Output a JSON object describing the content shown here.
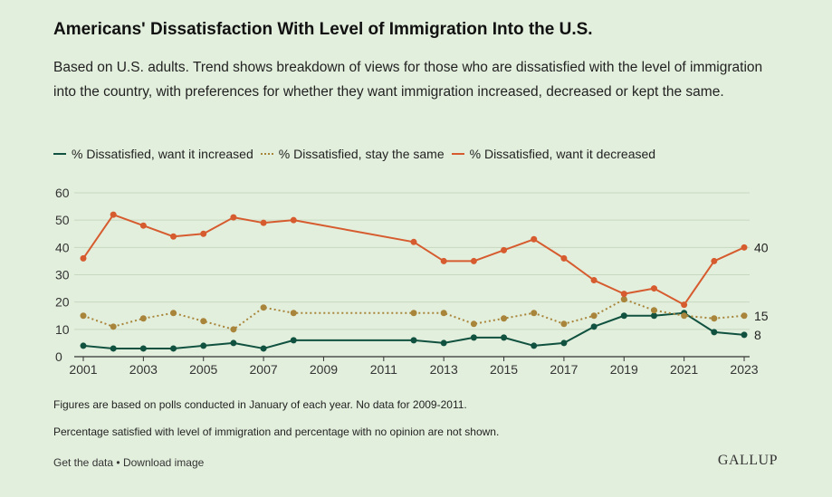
{
  "colors": {
    "increased": "#10513f",
    "same": "#a8853a",
    "decreased": "#d65c2f",
    "grid": "#c6d8c0",
    "background": "#e3efdd"
  },
  "header": {
    "title": "Americans' Dissatisfaction With Level of Immigration Into the U.S.",
    "subtitle": "Based on U.S. adults. Trend shows breakdown of views for those who are dissatisfied with the level of immigration into the country, with preferences for whether they want immigration increased, decreased or kept the same."
  },
  "legend": {
    "items": [
      {
        "label": "% Dissatisfied, want it increased",
        "style": "solid"
      },
      {
        "label": "% Dissatisfied, stay the same",
        "style": "dotted"
      },
      {
        "label": "% Dissatisfied, want it decreased",
        "style": "solid"
      }
    ]
  },
  "chart_data": {
    "type": "line",
    "x": [
      2001,
      2002,
      2003,
      2004,
      2005,
      2006,
      2007,
      2008,
      2012,
      2013,
      2014,
      2015,
      2016,
      2017,
      2018,
      2019,
      2020,
      2021,
      2022,
      2023
    ],
    "series": [
      {
        "name": "% Dissatisfied, want it increased",
        "values": [
          4,
          3,
          3,
          3,
          4,
          5,
          3,
          6,
          6,
          5,
          7,
          7,
          4,
          5,
          11,
          15,
          15,
          16,
          9,
          8
        ],
        "end_label": "8"
      },
      {
        "name": "% Dissatisfied, stay the same",
        "values": [
          15,
          11,
          14,
          16,
          13,
          10,
          18,
          16,
          16,
          16,
          12,
          14,
          16,
          12,
          15,
          21,
          17,
          15,
          14,
          15
        ],
        "end_label": "15"
      },
      {
        "name": "% Dissatisfied, want it decreased",
        "values": [
          36,
          52,
          48,
          44,
          45,
          51,
          49,
          50,
          42,
          35,
          35,
          39,
          43,
          36,
          28,
          23,
          25,
          19,
          35,
          40
        ],
        "end_label": "40"
      }
    ],
    "x_ticks": [
      "2001",
      "2003",
      "2005",
      "2007",
      "2009",
      "2011",
      "2013",
      "2015",
      "2017",
      "2019",
      "2021",
      "2023"
    ],
    "y_ticks": [
      "0",
      "10",
      "20",
      "30",
      "40",
      "50",
      "60"
    ],
    "xlim": [
      2001,
      2023
    ],
    "ylim": [
      0,
      60
    ],
    "grid": true,
    "legend_position": "top-left"
  },
  "notes": {
    "note1": "Figures are based on polls conducted in January of each year. No data for 2009-2011.",
    "note2": "Percentage satisfied with level of immigration and percentage with no opinion are not shown."
  },
  "footer": {
    "get_data": "Get the data",
    "separator": "•",
    "download": "Download image",
    "brand": "GALLUP"
  }
}
